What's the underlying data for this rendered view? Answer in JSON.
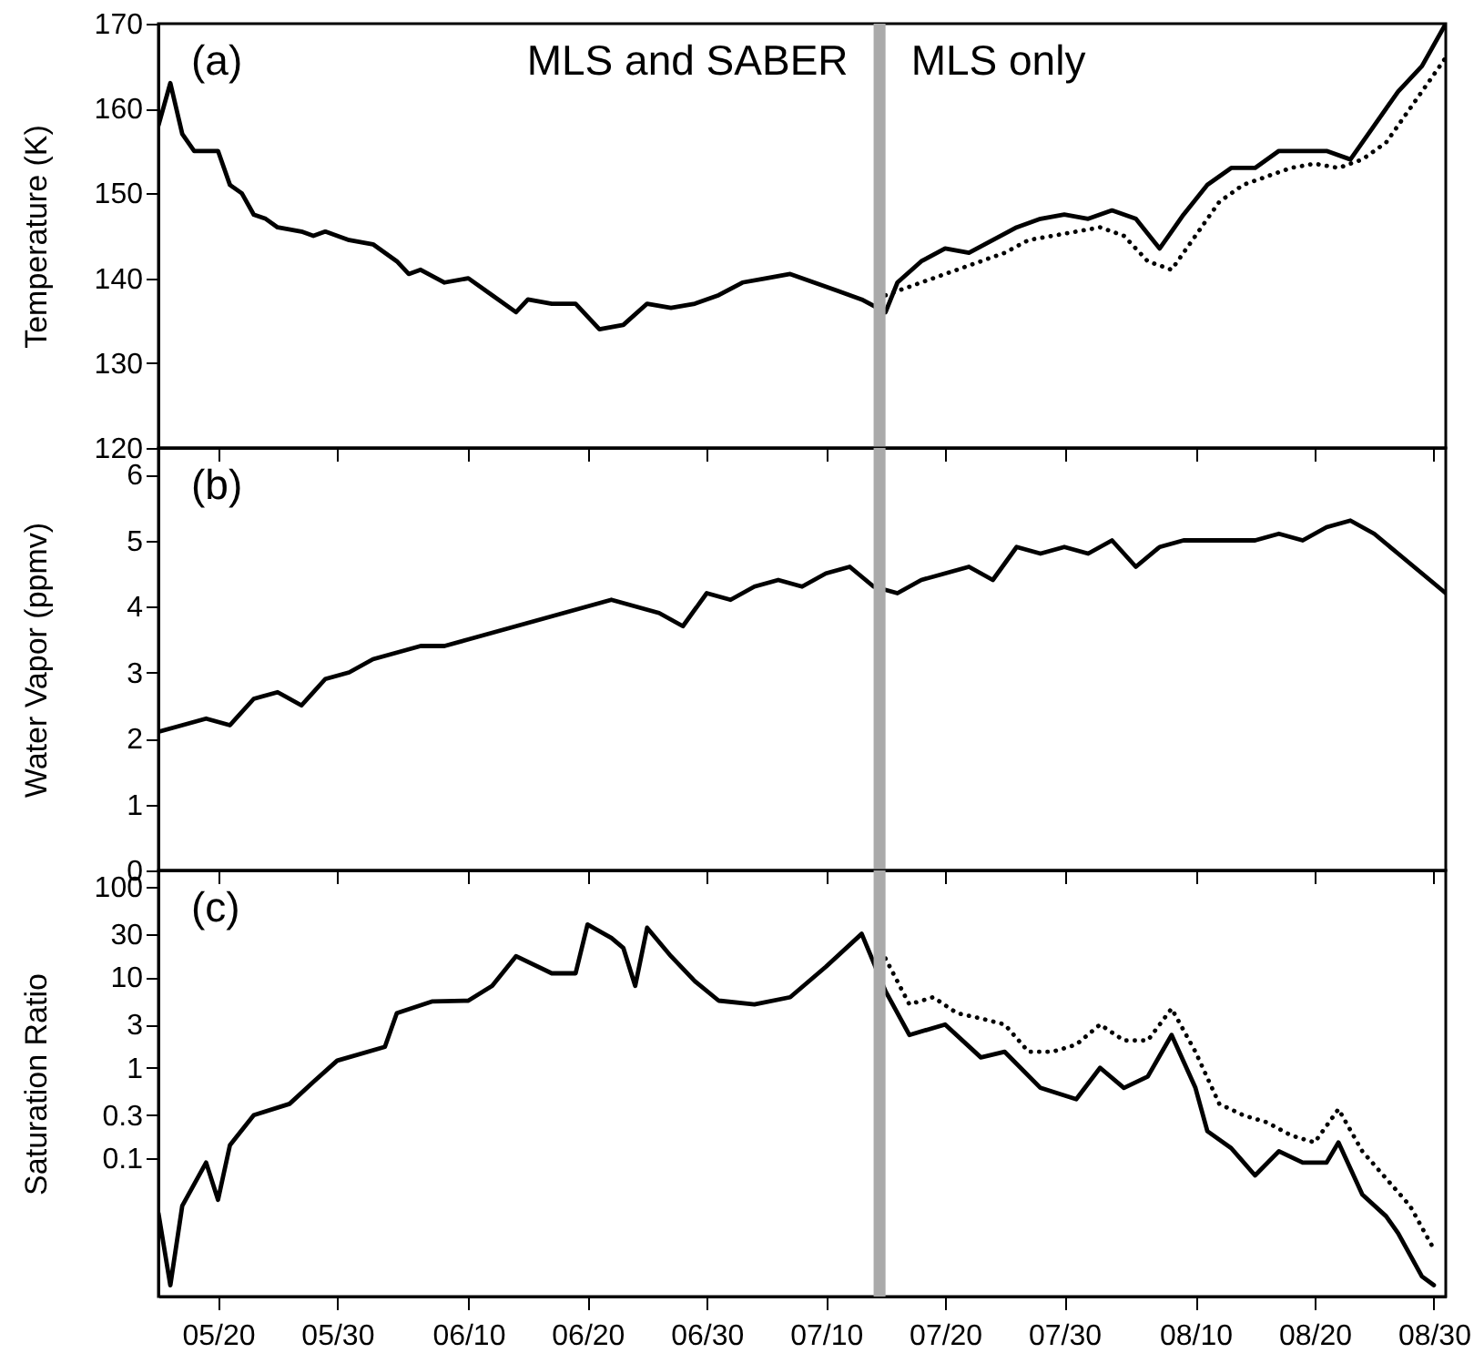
{
  "chart_data": [
    {
      "type": "line",
      "ylabel": "Temperature (K)",
      "xlim": [
        "--05-15",
        "--08-31"
      ],
      "xticks": [
        {
          "value": "--05-20",
          "label": null
        },
        {
          "value": "--05-30",
          "label": null
        },
        {
          "value": "--06-10",
          "label": null
        },
        {
          "value": "--06-20",
          "label": null
        },
        {
          "value": "--06-30",
          "label": null
        },
        {
          "value": "--07-10",
          "label": null
        },
        {
          "value": "--07-20",
          "label": null
        },
        {
          "value": "--07-30",
          "label": null
        },
        {
          "value": "--08-10",
          "label": null
        },
        {
          "value": "--08-20",
          "label": null
        },
        {
          "value": "--08-30",
          "label": null
        }
      ],
      "ylim": [
        120,
        170
      ],
      "yticks": [
        120,
        130,
        140,
        150,
        160,
        170
      ],
      "tick_labels": "y",
      "annotations": [
        "(a)",
        "MLS and SABER",
        "MLS only"
      ],
      "bands": [
        {
          "axis": "x",
          "from": "--07-14",
          "to": "--07-15",
          "color": "#aaaaaa"
        }
      ],
      "series": [
        {
          "color": "#000000",
          "line_style": "solid",
          "x": [
            "--05-15",
            "--05-16",
            "--05-17",
            "--05-18",
            "--05-20",
            "--05-21",
            "--05-22",
            "--05-23",
            "--05-24",
            "--05-25",
            "--05-27",
            "--05-28",
            "--05-29",
            "--05-31",
            "--06-02",
            "--06-04",
            "--06-05",
            "--06-06",
            "--06-08",
            "--06-10",
            "--06-12",
            "--06-14",
            "--06-15",
            "--06-17",
            "--06-19",
            "--06-21",
            "--06-23",
            "--06-25",
            "--06-27",
            "--06-29",
            "--07-01",
            "--07-03",
            "--07-05",
            "--07-07",
            "--07-09",
            "--07-11",
            "--07-13",
            "--07-15",
            "--07-16",
            "--07-18",
            "--07-20",
            "--07-22",
            "--07-24",
            "--07-26",
            "--07-28",
            "--07-30",
            "--08-01",
            "--08-03",
            "--08-05",
            "--08-07",
            "--08-09",
            "--08-11",
            "--08-13",
            "--08-15",
            "--08-17",
            "--08-19",
            "--08-21",
            "--08-23",
            "--08-25",
            "--08-27",
            "--08-29",
            "--08-31"
          ],
          "values": [
            158,
            163,
            157,
            155,
            155,
            151,
            150,
            147.5,
            147,
            146,
            145.5,
            145,
            145.5,
            144.5,
            144,
            142,
            140.5,
            141,
            139.5,
            140,
            138,
            136,
            137.5,
            137,
            137,
            134,
            134.5,
            137,
            136.5,
            137,
            138,
            139.5,
            140,
            140.5,
            139.5,
            138.5,
            137.5,
            136,
            139.5,
            142,
            143.5,
            143,
            144.5,
            146,
            147,
            147.5,
            147,
            148,
            147,
            143.5,
            147.5,
            151,
            153,
            153,
            155,
            155,
            155,
            154,
            158,
            162,
            165,
            170
          ]
        },
        {
          "color": "#000000",
          "line_style": "dotted",
          "x": [
            "--07-15",
            "--07-17",
            "--07-19",
            "--07-21",
            "--07-23",
            "--07-25",
            "--07-27",
            "--07-29",
            "--07-31",
            "--08-02",
            "--08-04",
            "--08-06",
            "--08-08",
            "--08-10",
            "--08-12",
            "--08-14",
            "--08-16",
            "--08-18",
            "--08-20",
            "--08-22",
            "--08-24",
            "--08-26",
            "--08-28",
            "--08-30",
            "--08-31"
          ],
          "values": [
            138,
            139,
            140,
            141,
            142,
            143,
            144.5,
            145,
            145.5,
            146,
            145,
            142,
            141,
            145,
            149,
            151,
            152,
            153,
            153.5,
            153,
            154,
            156,
            160,
            164,
            166
          ]
        }
      ]
    },
    {
      "type": "line",
      "ylabel": "Water Vapor (ppmv)",
      "xlim": [
        "--05-15",
        "--08-31"
      ],
      "xticks": [
        {
          "value": "--05-20",
          "label": null
        },
        {
          "value": "--05-30",
          "label": null
        },
        {
          "value": "--06-10",
          "label": null
        },
        {
          "value": "--06-20",
          "label": null
        },
        {
          "value": "--06-30",
          "label": null
        },
        {
          "value": "--07-10",
          "label": null
        },
        {
          "value": "--07-20",
          "label": null
        },
        {
          "value": "--07-30",
          "label": null
        },
        {
          "value": "--08-10",
          "label": null
        },
        {
          "value": "--08-20",
          "label": null
        },
        {
          "value": "--08-30",
          "label": null
        }
      ],
      "ylim": [
        0,
        6.4
      ],
      "yticks": [
        0,
        1,
        2,
        3,
        4,
        5,
        6
      ],
      "tick_labels": "y",
      "annotations": [
        "(b)"
      ],
      "bands": [
        {
          "axis": "x",
          "from": "--07-14",
          "to": "--07-15",
          "color": "#aaaaaa"
        }
      ],
      "series": [
        {
          "color": "#000000",
          "line_style": "solid",
          "x": [
            "--05-15",
            "--05-17",
            "--05-19",
            "--05-21",
            "--05-23",
            "--05-25",
            "--05-27",
            "--05-29",
            "--05-31",
            "--06-02",
            "--06-04",
            "--06-06",
            "--06-08",
            "--06-10",
            "--06-12",
            "--06-14",
            "--06-16",
            "--06-18",
            "--06-20",
            "--06-22",
            "--06-24",
            "--06-26",
            "--06-28",
            "--06-30",
            "--07-02",
            "--07-04",
            "--07-06",
            "--07-08",
            "--07-10",
            "--07-12",
            "--07-14",
            "--07-16",
            "--07-18",
            "--07-20",
            "--07-22",
            "--07-24",
            "--07-26",
            "--07-28",
            "--07-30",
            "--08-01",
            "--08-03",
            "--08-05",
            "--08-07",
            "--08-09",
            "--08-11",
            "--08-13",
            "--08-15",
            "--08-17",
            "--08-19",
            "--08-21",
            "--08-23",
            "--08-25",
            "--08-27",
            "--08-29",
            "--08-31"
          ],
          "values": [
            2.1,
            2.2,
            2.3,
            2.2,
            2.6,
            2.7,
            2.5,
            2.9,
            3.0,
            3.2,
            3.3,
            3.4,
            3.4,
            3.5,
            3.6,
            3.7,
            3.8,
            3.9,
            4.0,
            4.1,
            4.0,
            3.9,
            3.7,
            4.2,
            4.1,
            4.3,
            4.4,
            4.3,
            4.5,
            4.6,
            4.3,
            4.2,
            4.4,
            4.5,
            4.6,
            4.4,
            4.9,
            4.8,
            4.9,
            4.8,
            5.0,
            4.6,
            4.9,
            5.0,
            5.0,
            5.0,
            5.0,
            5.1,
            5.0,
            5.2,
            5.3,
            5.1,
            4.8,
            4.5,
            4.2
          ]
        }
      ]
    },
    {
      "type": "line",
      "ylabel": "Saturation Ratio",
      "log": "y",
      "xlim": [
        "--05-15",
        "--08-31"
      ],
      "xticks": [
        {
          "value": "--05-20",
          "label": "05/20"
        },
        {
          "value": "--05-30",
          "label": "05/30"
        },
        {
          "value": "--06-10",
          "label": "06/10"
        },
        {
          "value": "--06-20",
          "label": "06/20"
        },
        {
          "value": "--06-30",
          "label": "06/30"
        },
        {
          "value": "--07-10",
          "label": "07/10"
        },
        {
          "value": "--07-20",
          "label": "07/20"
        },
        {
          "value": "--07-30",
          "label": "07/30"
        },
        {
          "value": "--08-10",
          "label": "08/10"
        },
        {
          "value": "--08-20",
          "label": "08/20"
        },
        {
          "value": "--08-30",
          "label": "08/30"
        }
      ],
      "ylim": [
        0.003,
        150
      ],
      "yticks": [
        0.1,
        0.3,
        1,
        3,
        10,
        30,
        100
      ],
      "annotations": [
        "(c)"
      ],
      "bands": [
        {
          "axis": "x",
          "from": "--07-14",
          "to": "--07-15",
          "color": "#aaaaaa"
        }
      ],
      "series": [
        {
          "color": "#000000",
          "line_style": "solid",
          "x": [
            "--05-15",
            "--05-16",
            "--05-17",
            "--05-19",
            "--05-20",
            "--05-21",
            "--05-23",
            "--05-26",
            "--05-28",
            "--05-30",
            "--06-03",
            "--06-04",
            "--06-07",
            "--06-10",
            "--06-12",
            "--06-14",
            "--06-17",
            "--06-19",
            "--06-20",
            "--06-22",
            "--06-23",
            "--06-24",
            "--06-25",
            "--06-27",
            "--06-29",
            "--07-01",
            "--07-04",
            "--07-07",
            "--07-10",
            "--07-13",
            "--07-15",
            "--07-17",
            "--07-20",
            "--07-23",
            "--07-25",
            "--07-28",
            "--07-31",
            "--08-02",
            "--08-04",
            "--08-06",
            "--08-08",
            "--08-10",
            "--08-11",
            "--08-13",
            "--08-15",
            "--08-17",
            "--08-19",
            "--08-21",
            "--08-22",
            "--08-24",
            "--08-26",
            "--08-27",
            "--08-29",
            "--08-30"
          ],
          "values": [
            0.025,
            0.004,
            0.03,
            0.09,
            0.035,
            0.14,
            0.3,
            0.4,
            0.7,
            1.2,
            1.7,
            4,
            5.4,
            5.5,
            8,
            17,
            11,
            11,
            38,
            27,
            21,
            8,
            35,
            17,
            9,
            5.5,
            5,
            6,
            13,
            30,
            7,
            2.3,
            3,
            1.3,
            1.5,
            0.6,
            0.45,
            1,
            0.6,
            0.8,
            2.3,
            0.6,
            0.2,
            0.13,
            0.065,
            0.12,
            0.09,
            0.09,
            0.15,
            0.04,
            0.023,
            0.015,
            0.005,
            0.004
          ]
        },
        {
          "color": "#000000",
          "line_style": "dotted",
          "x": [
            "--07-15",
            "--07-17",
            "--07-19",
            "--07-21",
            "--07-23",
            "--07-25",
            "--07-27",
            "--07-29",
            "--07-31",
            "--08-02",
            "--08-04",
            "--08-06",
            "--08-08",
            "--08-10",
            "--08-12",
            "--08-14",
            "--08-16",
            "--08-18",
            "--08-20",
            "--08-22",
            "--08-24",
            "--08-26",
            "--08-28",
            "--08-30"
          ],
          "values": [
            16,
            5,
            6,
            4,
            3.5,
            3,
            1.5,
            1.5,
            1.8,
            3,
            2,
            2,
            4.5,
            1.5,
            0.4,
            0.3,
            0.25,
            0.18,
            0.15,
            0.35,
            0.12,
            0.06,
            0.03,
            0.01
          ]
        }
      ]
    }
  ]
}
